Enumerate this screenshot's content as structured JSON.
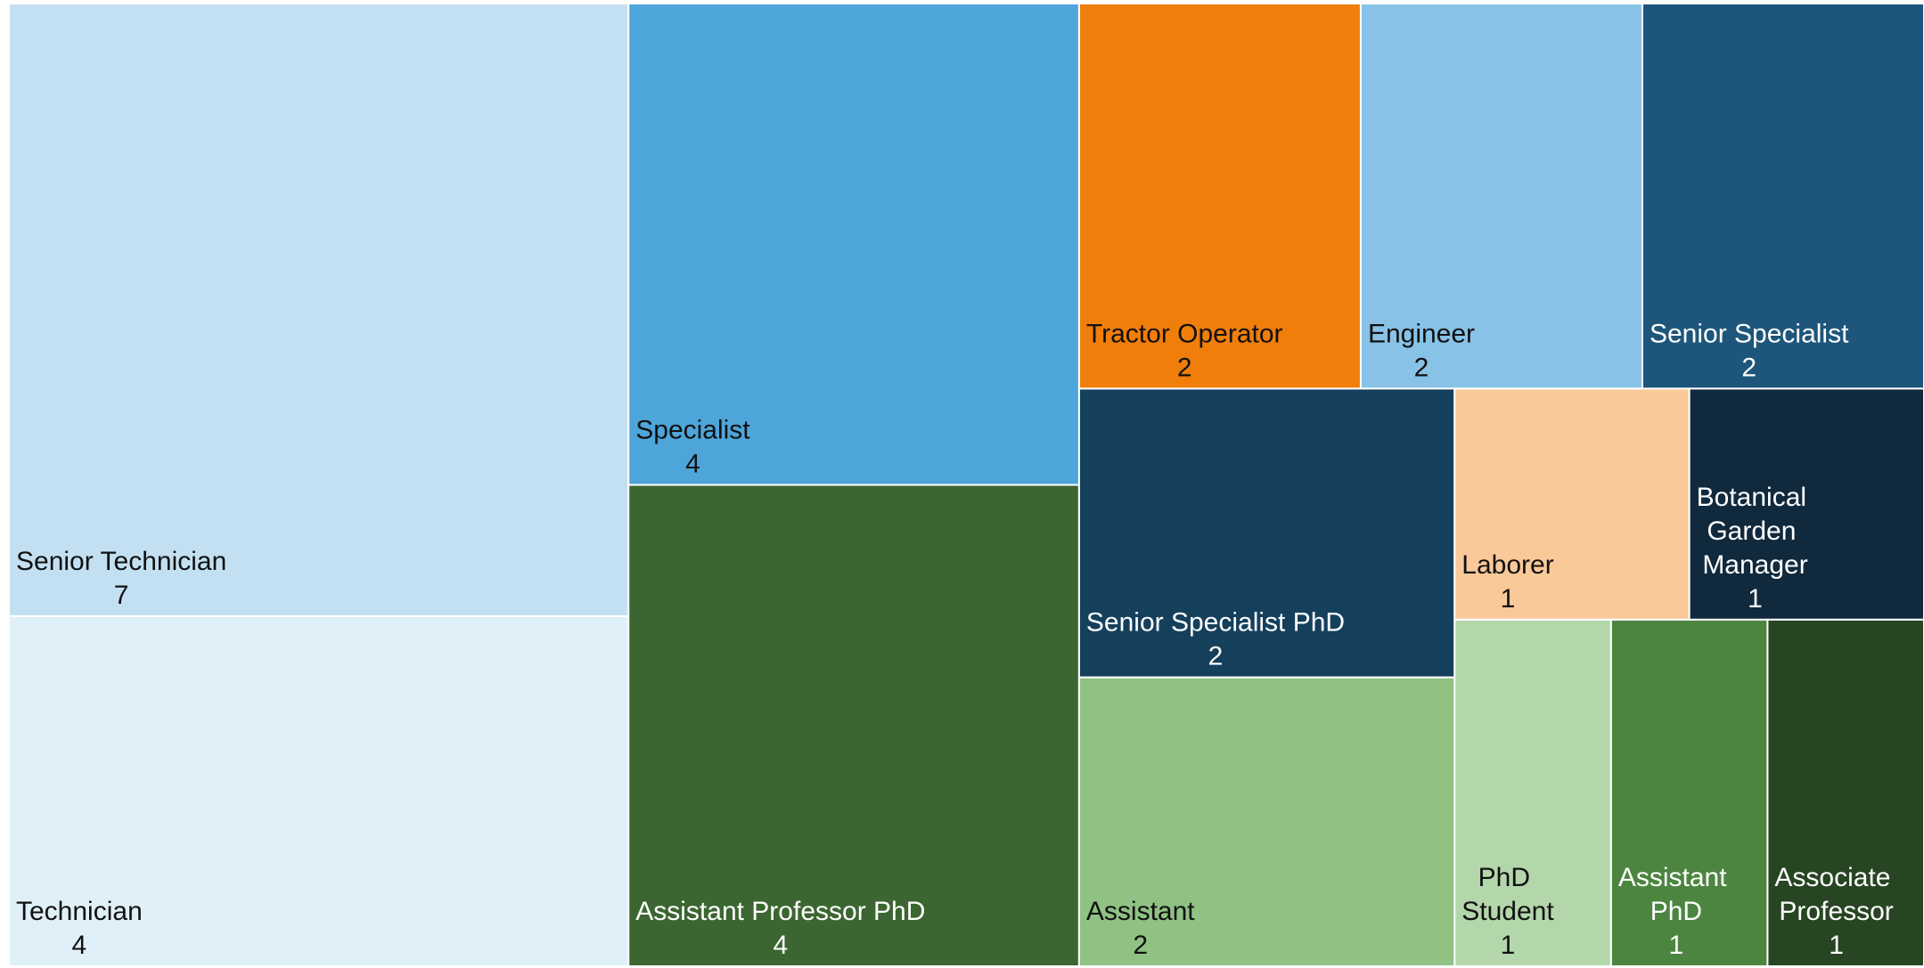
{
  "chart_data": {
    "type": "treemap",
    "categories": [
      "Senior Technician",
      "Technician",
      "Specialist",
      "Assistant Professor PhD",
      "Tractor Operator",
      "Engineer",
      "Senior Specialist",
      "Senior Specialist PhD",
      "Assistant",
      "Laborer",
      "Botanical Garden Manager",
      "PhD Student",
      "Assistant PhD",
      "Associate Professor"
    ],
    "values": [
      7,
      4,
      4,
      4,
      2,
      2,
      2,
      2,
      2,
      1,
      1,
      1,
      1,
      1
    ],
    "colors": [
      "#c3e0f2",
      "#e0f0f8",
      "#4ea5da",
      "#3c6631",
      "#f07e0a",
      "#88c2e6",
      "#1d567a",
      "#15405c",
      "#8fc283",
      "#f9c99a",
      "#10293d",
      "#b4d6ab",
      "#4c8540",
      "#284523"
    ]
  }
}
